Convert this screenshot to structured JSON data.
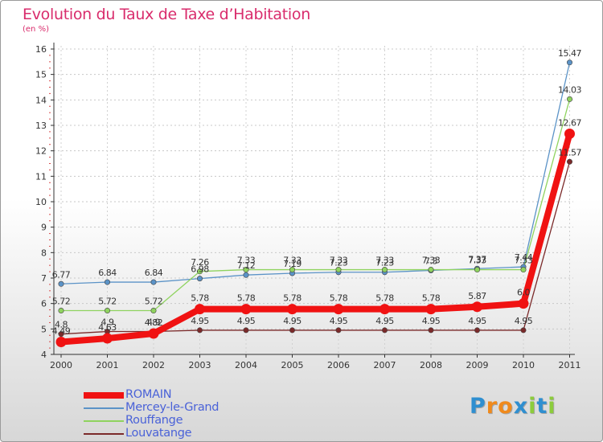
{
  "chart_data": {
    "type": "line",
    "title": "Evolution du Taux de Taxe d’Habitation",
    "subtitle": "(en %)",
    "x": [
      "2000",
      "2001",
      "2002",
      "2003",
      "2004",
      "2005",
      "2006",
      "2007",
      "2008",
      "2009",
      "2010",
      "2011"
    ],
    "ylim": [
      4,
      16
    ],
    "yticks": [
      "4",
      "5",
      "6",
      "7",
      "8",
      "9",
      "10",
      "11",
      "12",
      "13",
      "14",
      "15",
      "16"
    ],
    "series": [
      {
        "name": "Mercey-le-Grand",
        "color": "#5b93c7",
        "values": [
          6.77,
          6.84,
          6.84,
          6.98,
          7.12,
          7.19,
          7.23,
          7.23,
          7.3,
          7.37,
          7.44,
          15.47
        ],
        "labels": [
          "6.77",
          "6.84",
          "6.84",
          "6.98",
          "7.12",
          "7.19",
          "7.23",
          "7.23",
          "7.3",
          "7.37",
          "7.44",
          "15.47"
        ]
      },
      {
        "name": "Rouffange",
        "color": "#8fd35f",
        "values": [
          5.72,
          5.72,
          5.72,
          7.26,
          7.33,
          7.33,
          7.33,
          7.33,
          7.33,
          7.33,
          7.33,
          14.03
        ],
        "labels": [
          "5.72",
          "5.72",
          "5.72",
          "7.26",
          "7.33",
          "7.33",
          "7.33",
          "7.33",
          "7.33",
          "7.33",
          "7.33",
          "14.03"
        ]
      },
      {
        "name": "Louvatange",
        "color": "#7b2a2a",
        "values": [
          4.8,
          4.9,
          4.9,
          4.95,
          4.95,
          4.95,
          4.95,
          4.95,
          4.95,
          4.95,
          4.95,
          11.57
        ],
        "labels": [
          "4.8",
          "4.9",
          "4.9",
          "4.95",
          "4.95",
          "4.95",
          "4.95",
          "4.95",
          "4.95",
          "4.95",
          "4.95",
          "11.57"
        ]
      },
      {
        "name": "ROMAIN",
        "color": "#f01212",
        "values": [
          4.49,
          4.63,
          4.82,
          5.78,
          5.78,
          5.78,
          5.78,
          5.78,
          5.78,
          5.87,
          6.0,
          12.67
        ],
        "labels": [
          "4.49",
          "4.63",
          "4.82",
          "5.78",
          "5.78",
          "5.78",
          "5.78",
          "5.78",
          "5.78",
          "5.87",
          "6.0",
          "12.67"
        ]
      }
    ],
    "legend": [
      {
        "name": "ROMAIN",
        "color": "#f01212",
        "thickness": "thick"
      },
      {
        "name": "Mercey-le-Grand",
        "color": "#5b93c7",
        "thickness": "thin"
      },
      {
        "name": "Rouffange",
        "color": "#8fd35f",
        "thickness": "thin"
      },
      {
        "name": "Louvatange",
        "color": "#7b2a2a",
        "thickness": "thin"
      }
    ],
    "legend_position": "bottom-left"
  },
  "brand": {
    "letters": [
      "P",
      "r",
      "o",
      "x",
      "i",
      "t",
      "i"
    ],
    "colors": [
      "#2f8fd0",
      "#f08a1c",
      "#f08a1c",
      "#2f8fd0",
      "#8ccc3c",
      "#2f8fd0",
      "#8ccc3c"
    ]
  },
  "colors": {
    "title": "#d92c6c",
    "legend_text": "#4a62d8",
    "axis": "#333333"
  }
}
